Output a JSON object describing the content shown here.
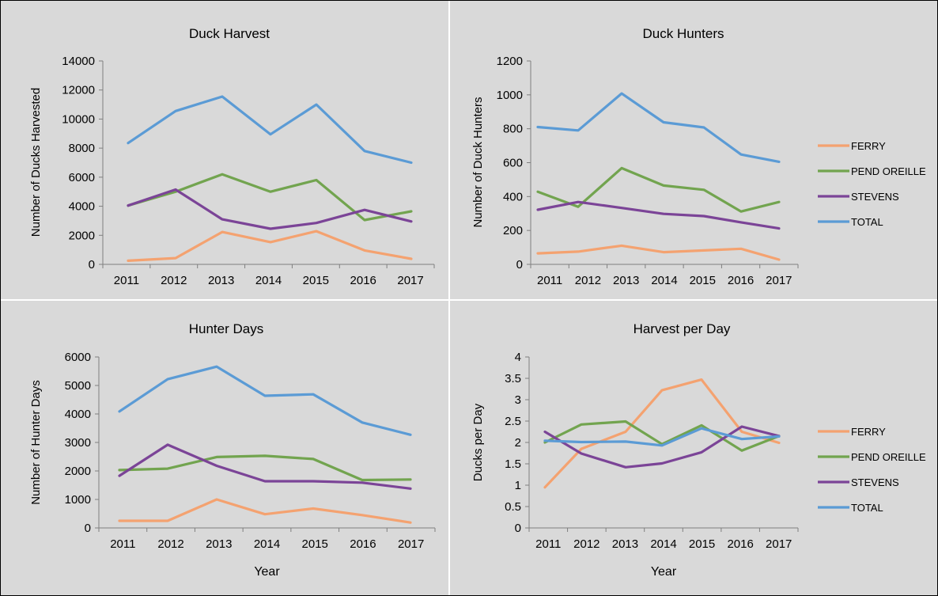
{
  "colors": {
    "background": "#d9d9d9",
    "divider": "#ffffff",
    "frame": "#000000",
    "axis": "#7f7f7f",
    "FERRY": "#f4a270",
    "PEND OREILLE": "#72a44f",
    "STEVENS": "#7b4497",
    "TOTAL": "#5b9bd5"
  },
  "legend": {
    "items": [
      {
        "label": "FERRY",
        "color": "#f4a270"
      },
      {
        "label": "PEND OREILLE",
        "color": "#72a44f"
      },
      {
        "label": "STEVENS",
        "color": "#7b4497"
      },
      {
        "label": "TOTAL",
        "color": "#5b9bd5"
      }
    ]
  },
  "chart_data": [
    {
      "type": "line",
      "title": "Duck Harvest",
      "xlabel": "",
      "ylabel": "Number of Ducks Harvested",
      "categories": [
        "2011",
        "2012",
        "2013",
        "2014",
        "2015",
        "2016",
        "2017"
      ],
      "ylim": [
        0,
        14000
      ],
      "yticks": [
        0,
        2000,
        4000,
        6000,
        8000,
        10000,
        12000,
        14000
      ],
      "grid": false,
      "legend": "none",
      "series": [
        {
          "name": "FERRY",
          "values": [
            250,
            430,
            2230,
            1530,
            2280,
            960,
            380
          ]
        },
        {
          "name": "PEND OREILLE",
          "values": [
            4050,
            5000,
            6200,
            5000,
            5800,
            3050,
            3650
          ]
        },
        {
          "name": "STEVENS",
          "values": [
            4050,
            5150,
            3100,
            2450,
            2850,
            3750,
            2950
          ]
        },
        {
          "name": "TOTAL",
          "values": [
            8350,
            10550,
            11550,
            8950,
            11000,
            7800,
            7000
          ]
        }
      ]
    },
    {
      "type": "line",
      "title": "Duck Hunters",
      "xlabel": "",
      "ylabel": "Number of Duck Hunters",
      "categories": [
        "2011",
        "2012",
        "2013",
        "2014",
        "2015",
        "2016",
        "2017"
      ],
      "ylim": [
        0,
        1200
      ],
      "yticks": [
        0,
        200,
        400,
        600,
        800,
        1000,
        1200
      ],
      "grid": false,
      "legend": "right",
      "series": [
        {
          "name": "FERRY",
          "values": [
            65,
            75,
            110,
            72,
            82,
            92,
            28
          ]
        },
        {
          "name": "PEND OREILLE",
          "values": [
            428,
            340,
            568,
            465,
            440,
            312,
            368
          ]
        },
        {
          "name": "STEVENS",
          "values": [
            322,
            368,
            333,
            298,
            285,
            248,
            212
          ]
        },
        {
          "name": "TOTAL",
          "values": [
            810,
            790,
            1008,
            838,
            808,
            648,
            605
          ]
        }
      ]
    },
    {
      "type": "line",
      "title": "Hunter Days",
      "xlabel": "Year",
      "ylabel": "Number of Hunter Days",
      "categories": [
        "2011",
        "2012",
        "2013",
        "2014",
        "2015",
        "2016",
        "2017"
      ],
      "ylim": [
        0,
        6000
      ],
      "yticks": [
        0,
        1000,
        2000,
        3000,
        4000,
        5000,
        6000
      ],
      "grid": false,
      "legend": "none",
      "series": [
        {
          "name": "FERRY",
          "values": [
            250,
            250,
            1000,
            480,
            680,
            450,
            190
          ]
        },
        {
          "name": "PEND OREILLE",
          "values": [
            2030,
            2080,
            2490,
            2530,
            2420,
            1680,
            1700
          ]
        },
        {
          "name": "STEVENS",
          "values": [
            1830,
            2920,
            2180,
            1640,
            1640,
            1590,
            1380
          ]
        },
        {
          "name": "TOTAL",
          "values": [
            4090,
            5220,
            5660,
            4640,
            4690,
            3700,
            3270
          ]
        }
      ]
    },
    {
      "type": "line",
      "title": "Harvest per Day",
      "xlabel": "Year",
      "ylabel": "Ducks per Day",
      "categories": [
        "2011",
        "2012",
        "2013",
        "2014",
        "2015",
        "2016",
        "2017"
      ],
      "ylim": [
        0,
        4
      ],
      "yticks": [
        "0",
        "0.5",
        "1",
        "1.5",
        "2",
        "2.5",
        "3",
        "3.5",
        "4"
      ],
      "grid": false,
      "legend": "right",
      "series": [
        {
          "name": "FERRY",
          "values": [
            0.95,
            1.85,
            2.25,
            3.22,
            3.47,
            2.25,
            1.99
          ]
        },
        {
          "name": "PEND OREILLE",
          "values": [
            2.0,
            2.42,
            2.49,
            1.96,
            2.4,
            1.81,
            2.15
          ]
        },
        {
          "name": "STEVENS",
          "values": [
            2.25,
            1.74,
            1.42,
            1.51,
            1.77,
            2.37,
            2.15
          ]
        },
        {
          "name": "TOTAL",
          "values": [
            2.04,
            2.01,
            2.02,
            1.93,
            2.33,
            2.08,
            2.14
          ]
        }
      ]
    }
  ]
}
